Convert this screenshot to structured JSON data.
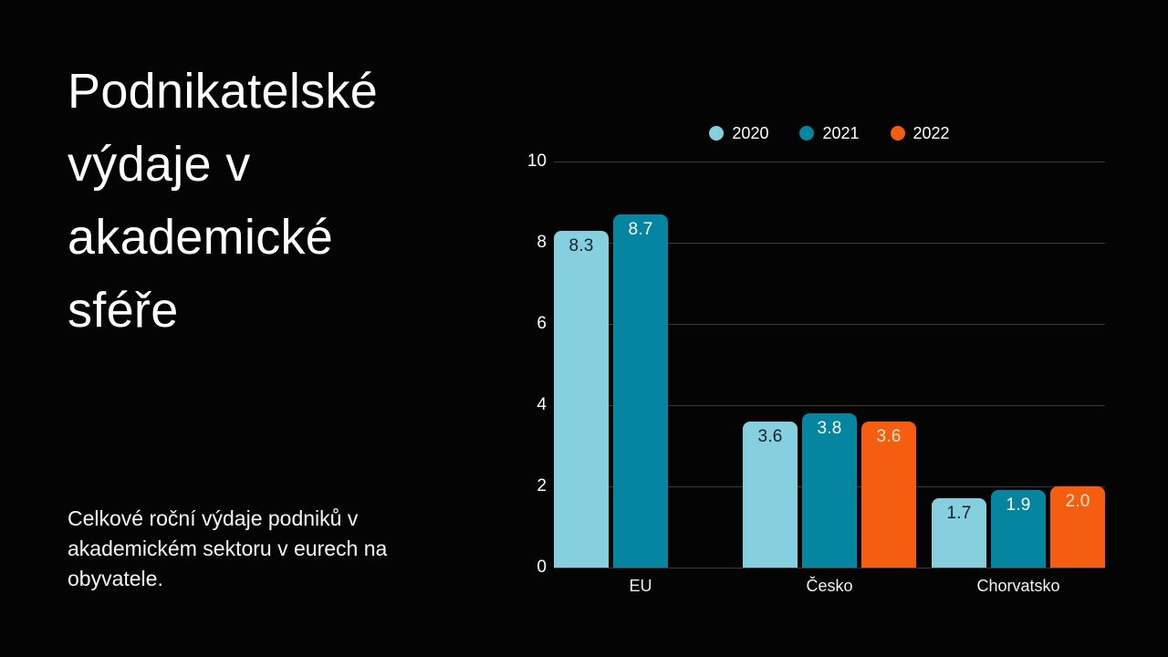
{
  "title": "Podnikatelské\nvýdaje v\nakademické\nsféře",
  "subtitle": "Celkové roční výdaje podniků v\nakademickém sektoru v eurech na\nobyvatele.",
  "colors": {
    "background": "#040404",
    "gridline": "#3a3a3a",
    "axis_text": "#ffffff"
  },
  "chart_data": {
    "type": "bar",
    "title": "",
    "xlabel": "",
    "ylabel": "",
    "categories": [
      "EU",
      "Česko",
      "Chorvatsko"
    ],
    "series": [
      {
        "name": "2020",
        "color": "#85CFDF",
        "label_color": "#10222c",
        "values": [
          8.3,
          3.6,
          1.7
        ]
      },
      {
        "name": "2021",
        "color": "#0685A1",
        "label_color": "#ffffff",
        "values": [
          8.7,
          3.8,
          1.9
        ]
      },
      {
        "name": "2022",
        "color": "#F55D11",
        "label_color": "#fbe8cd",
        "values": [
          null,
          3.6,
          2.0
        ]
      }
    ],
    "ylim": [
      0,
      10
    ],
    "yticks": [
      0,
      2,
      4,
      6,
      8,
      10
    ],
    "grid": true,
    "legend_position": "top",
    "value_label_format": "one_decimal"
  }
}
